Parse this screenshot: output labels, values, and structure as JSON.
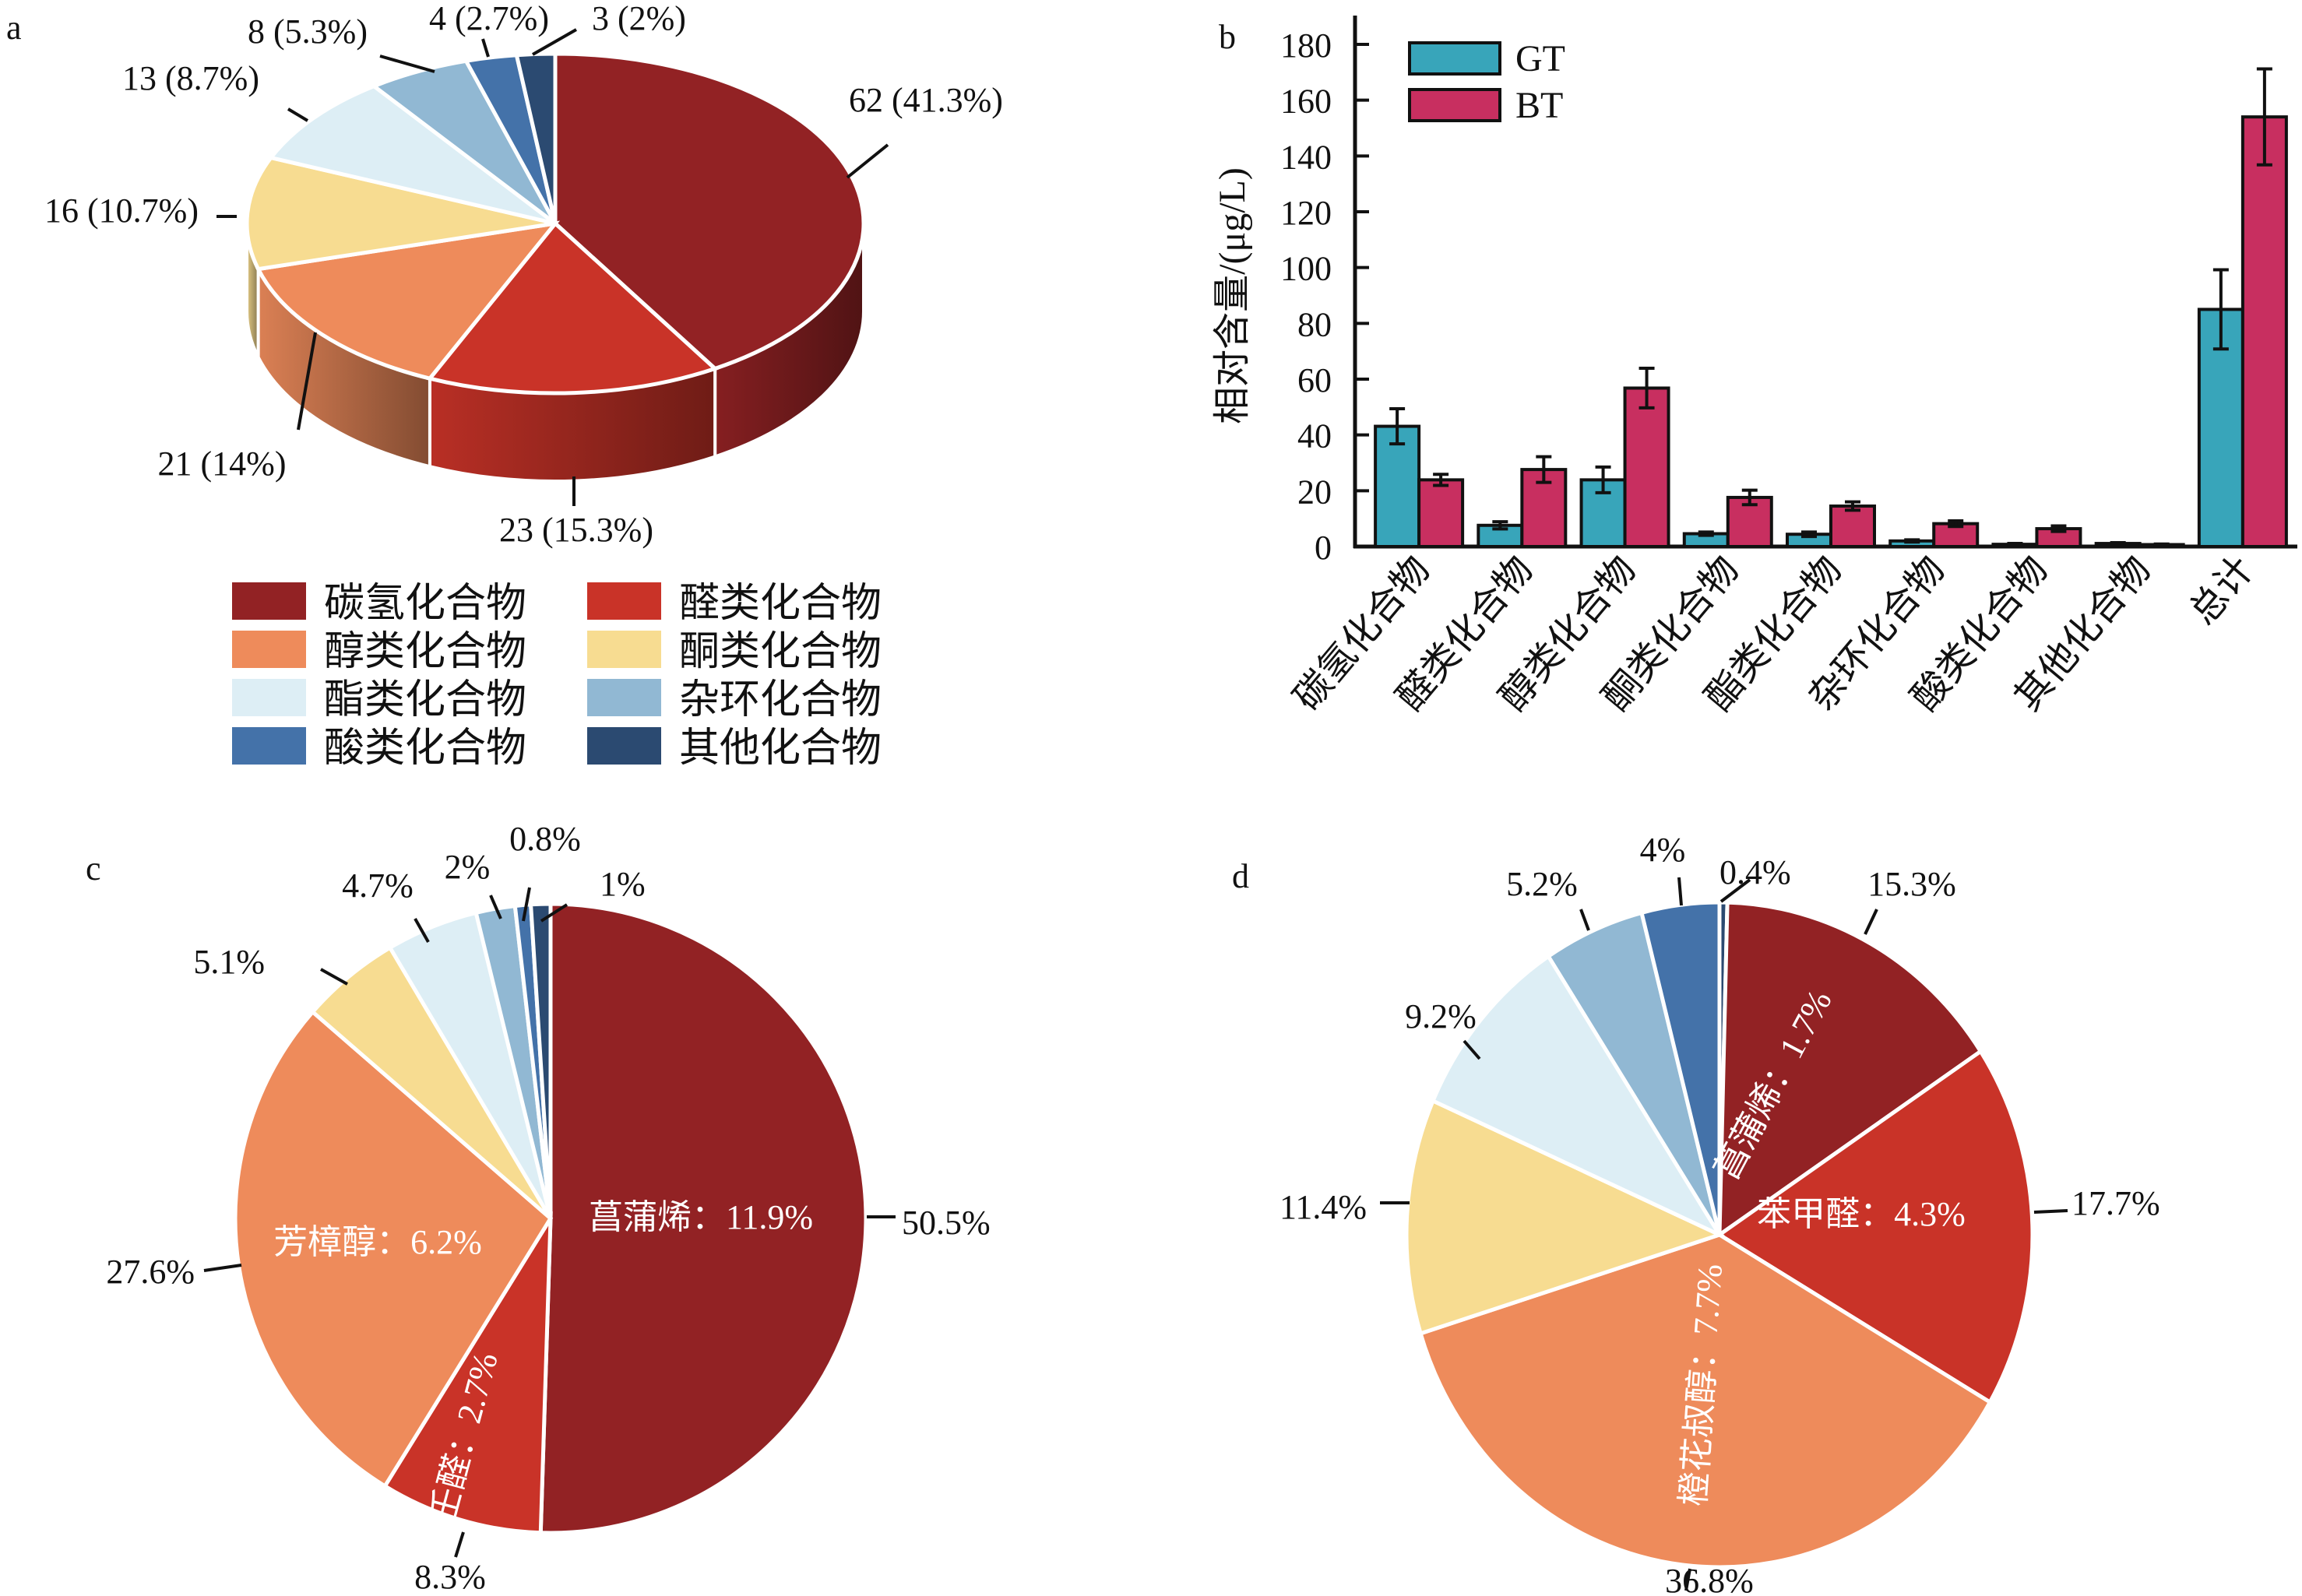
{
  "figure": {
    "panels": [
      "a",
      "b",
      "c",
      "d"
    ]
  },
  "colors": {
    "hydrocarbon": "#922224",
    "aldehyde": "#C93328",
    "alcohol": "#EE8B5B",
    "ketone": "#F7DC91",
    "ester": "#DDEEF5",
    "heterocycle": "#91B8D3",
    "acid": "#4472A9",
    "other": "#2B4A71",
    "GT": "#38A5BA",
    "BT": "#C82F60"
  },
  "chart_data": [
    {
      "panel": "a",
      "type": "pie",
      "style": "3d",
      "title": "",
      "categories": [
        "碳氢化合物",
        "醛类化合物",
        "醇类化合物",
        "酮类化合物",
        "酯类化合物",
        "杂环化合物",
        "酸类化合物",
        "其他化合物"
      ],
      "values": [
        62,
        23,
        21,
        16,
        13,
        8,
        4,
        3
      ],
      "percent": [
        41.3,
        15.3,
        14,
        10.7,
        8.7,
        5.3,
        2.7,
        2
      ],
      "labels": [
        "62 (41.3%)",
        "23 (15.3%)",
        "21 (14%)",
        "16 (10.7%)",
        "13 (8.7%)",
        "8 (5.3%)",
        "4 (2.7%)",
        "3 (2%)"
      ],
      "color_keys": [
        "hydrocarbon",
        "aldehyde",
        "alcohol",
        "ketone",
        "ester",
        "heterocycle",
        "acid",
        "other"
      ],
      "direction": "clockwise-from-top",
      "legend": {
        "placement": "bottom",
        "columns": 2,
        "entries": [
          {
            "label": "碳氢化合物",
            "color_key": "hydrocarbon"
          },
          {
            "label": "醛类化合物",
            "color_key": "aldehyde"
          },
          {
            "label": "醇类化合物",
            "color_key": "alcohol"
          },
          {
            "label": "酮类化合物",
            "color_key": "ketone"
          },
          {
            "label": "酯类化合物",
            "color_key": "ester"
          },
          {
            "label": "杂环化合物",
            "color_key": "heterocycle"
          },
          {
            "label": "酸类化合物",
            "color_key": "acid"
          },
          {
            "label": "其他化合物",
            "color_key": "other"
          }
        ]
      }
    },
    {
      "panel": "b",
      "type": "bar",
      "title": "",
      "xlabel": "",
      "ylabel": "相对含量/(μg/L)",
      "ylim": [
        0,
        180
      ],
      "yticks": [
        0,
        20,
        40,
        60,
        80,
        100,
        120,
        140,
        160,
        180
      ],
      "grid": false,
      "legend": {
        "placement": "top-left"
      },
      "categories": [
        "碳氢化合物",
        "醛类化合物",
        "醇类化合物",
        "酮类化合物",
        "酯类化合物",
        "杂环化合物",
        "酸类化合物",
        "其他化合物",
        "总计"
      ],
      "series": [
        {
          "name": "GT",
          "color_key": "GT",
          "values": [
            43.1,
            7.6,
            23.9,
            4.6,
            4.4,
            2.0,
            0.8,
            1.1,
            85.0
          ],
          "errors": [
            6.3,
            1.3,
            4.6,
            0.6,
            0.8,
            0.4,
            0.3,
            0.3,
            14.2
          ]
        },
        {
          "name": "BT",
          "color_key": "BT",
          "values": [
            23.9,
            27.6,
            56.8,
            17.6,
            14.5,
            8.2,
            6.4,
            0.7,
            154.0
          ],
          "errors": [
            2.0,
            4.6,
            7.1,
            2.6,
            1.5,
            1.0,
            1.0,
            0.2,
            17.2
          ]
        }
      ]
    },
    {
      "panel": "c",
      "type": "pie",
      "title": "",
      "categories": [
        "碳氢化合物",
        "醛类化合物",
        "醇类化合物",
        "酮类化合物",
        "酯类化合物",
        "杂环化合物",
        "酸类化合物",
        "其他化合物"
      ],
      "percent": [
        50.5,
        8.3,
        27.6,
        5.1,
        4.7,
        2,
        0.8,
        1
      ],
      "labels": [
        "50.5%",
        "8.3%",
        "27.6%",
        "5.1%",
        "4.7%",
        "2%",
        "0.8%",
        "1%"
      ],
      "color_keys": [
        "hydrocarbon",
        "aldehyde",
        "alcohol",
        "ketone",
        "ester",
        "heterocycle",
        "acid",
        "other"
      ],
      "direction": "clockwise-from-top",
      "annotations": [
        {
          "slice": "碳氢化合物",
          "text": "菖蒲烯：11.9%"
        },
        {
          "slice": "醛类化合物",
          "text": "壬醛：2.7%"
        },
        {
          "slice": "醇类化合物",
          "text": "芳樟醇：6.2%"
        }
      ]
    },
    {
      "panel": "d",
      "type": "pie",
      "title": "",
      "categories": [
        "其他化合物",
        "碳氢化合物",
        "醛类化合物",
        "醇类化合物",
        "酮类化合物",
        "酯类化合物",
        "杂环化合物",
        "酸类化合物"
      ],
      "percent": [
        0.4,
        15.3,
        17.7,
        36.8,
        11.4,
        9.2,
        5.2,
        4
      ],
      "labels": [
        "0.4%",
        "15.3%",
        "17.7%",
        "36.8%",
        "11.4%",
        "9.2%",
        "5.2%",
        "4%"
      ],
      "color_keys": [
        "other",
        "hydrocarbon",
        "aldehyde",
        "alcohol",
        "ketone",
        "ester",
        "heterocycle",
        "acid"
      ],
      "direction": "clockwise-from-top",
      "annotations": [
        {
          "slice": "碳氢化合物",
          "text": "菖蒲烯：1.7%"
        },
        {
          "slice": "醛类化合物",
          "text": "苯甲醛：4.3%"
        },
        {
          "slice": "醇类化合物",
          "text": "橙花叔醇：7.7%"
        }
      ]
    }
  ]
}
